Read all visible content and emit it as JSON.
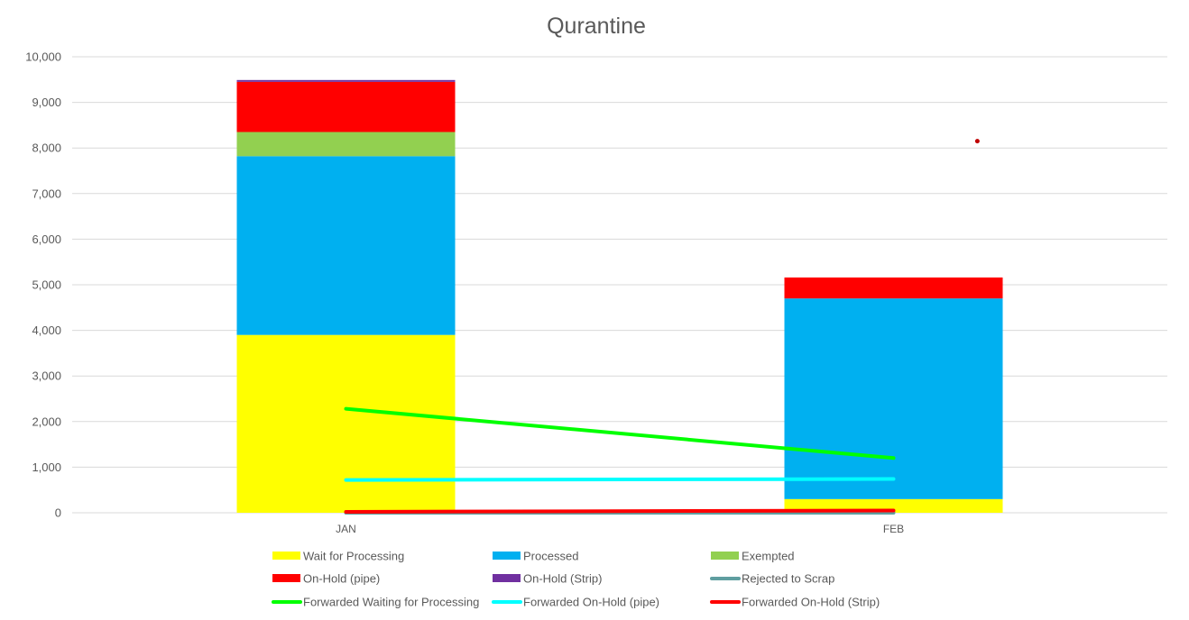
{
  "chart_data": {
    "type": "bar",
    "stacked": true,
    "title": "Qurantine",
    "categories": [
      "JAN",
      "FEB"
    ],
    "ylim": [
      0,
      10000
    ],
    "yticks": [
      0,
      1000,
      2000,
      3000,
      4000,
      5000,
      6000,
      7000,
      8000,
      9000,
      10000
    ],
    "ytick_labels": [
      "0",
      "1,000",
      "2,000",
      "3,000",
      "4,000",
      "5,000",
      "6,000",
      "7,000",
      "8,000",
      "9,000",
      "10,000"
    ],
    "grid": true,
    "legend_position": "bottom",
    "bar_series": [
      {
        "name": "Wait for Processing",
        "color": "#FFFF00",
        "values": [
          3900,
          300
        ]
      },
      {
        "name": "Processed",
        "color": "#00B0F0",
        "values": [
          3920,
          4400
        ]
      },
      {
        "name": "Exempted",
        "color": "#92D050",
        "values": [
          530,
          0
        ]
      },
      {
        "name": "On-Hold (pipe)",
        "color": "#FF0000",
        "values": [
          1100,
          460
        ]
      },
      {
        "name": "On-Hold (Strip)",
        "color": "#7030A0",
        "values": [
          40,
          0
        ]
      }
    ],
    "line_series": [
      {
        "name": "Rejected to Scrap",
        "color": "#5F9EA0",
        "values": [
          0,
          0
        ]
      },
      {
        "name": "Forwarded Waiting  for Processing",
        "color": "#00FF00",
        "values": [
          2280,
          1200
        ]
      },
      {
        "name": "Forwarded On-Hold (pipe)",
        "color": "#00FFFF",
        "values": [
          720,
          740
        ]
      },
      {
        "name": "Forwarded On-Hold (Strip)",
        "color": "#FF0000",
        "values": [
          20,
          50
        ]
      }
    ],
    "legend_order": [
      "Wait for Processing",
      "Processed",
      "Exempted",
      "On-Hold (pipe)",
      "On-Hold (Strip)",
      "Rejected to Scrap",
      "Forwarded Waiting  for Processing",
      "Forwarded On-Hold (pipe)",
      "Forwarded On-Hold (Strip)"
    ],
    "legend_colors": {
      "Wait for Processing": "#FFFF00",
      "Processed": "#00B0F0",
      "Exempted": "#92D050",
      "On-Hold (pipe)": "#FF0000",
      "On-Hold (Strip)": "#7030A0",
      "Rejected to Scrap": "#5F9EA0",
      "Forwarded Waiting  for Processing": "#00FF00",
      "Forwarded On-Hold (pipe)": "#00FFFF",
      "Forwarded On-Hold (Strip)": "#FF0000"
    },
    "legend_kinds": {
      "Wait for Processing": "box",
      "Processed": "box",
      "Exempted": "box",
      "On-Hold (pipe)": "box",
      "On-Hold (Strip)": "box",
      "Rejected to Scrap": "line",
      "Forwarded Waiting  for Processing": "line",
      "Forwarded On-Hold (pipe)": "line",
      "Forwarded On-Hold (Strip)": "line"
    },
    "stray_point": {
      "category_position": 0.87,
      "value": 8150,
      "color": "#C00000"
    }
  }
}
